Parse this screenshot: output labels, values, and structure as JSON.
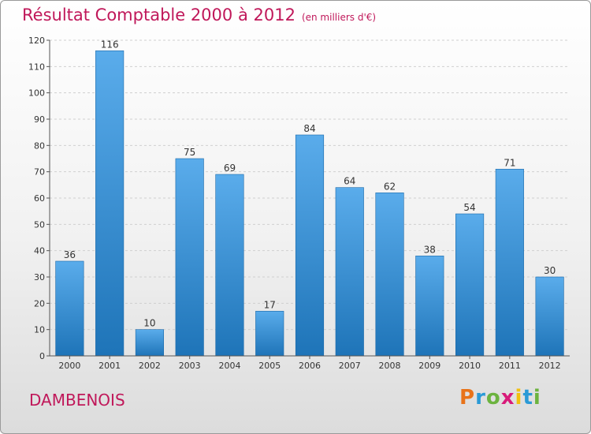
{
  "title": "Résultat Comptable 2000 à 2012",
  "subtitle": "(en milliers d'€)",
  "city": "DAMBENOIS",
  "logo": {
    "letters": [
      "P",
      "r",
      "o",
      "x",
      "i",
      "t",
      "i"
    ],
    "colors": [
      "#e8731a",
      "#2a9ad6",
      "#6cb33f",
      "#d81b7a",
      "#f2c00f",
      "#2a9ad6",
      "#6cb33f"
    ]
  },
  "colors": {
    "title": "#c0185a",
    "bar_light": "#5aaceb",
    "bar_dark": "#1e74b8",
    "grid": "#cfcfcf"
  },
  "chart_data": {
    "type": "bar",
    "title": "Résultat Comptable 2000 à 2012",
    "subtitle": "(en milliers d'€)",
    "categories": [
      "2000",
      "2001",
      "2002",
      "2003",
      "2004",
      "2005",
      "2006",
      "2007",
      "2008",
      "2009",
      "2010",
      "2011",
      "2012"
    ],
    "values": [
      36,
      116,
      10,
      75,
      69,
      17,
      84,
      64,
      62,
      38,
      54,
      71,
      30
    ],
    "ylim": [
      0,
      120
    ],
    "yticks": [
      0,
      10,
      20,
      30,
      40,
      50,
      60,
      70,
      80,
      90,
      100,
      110,
      120
    ],
    "grid": true,
    "data_labels": true
  }
}
